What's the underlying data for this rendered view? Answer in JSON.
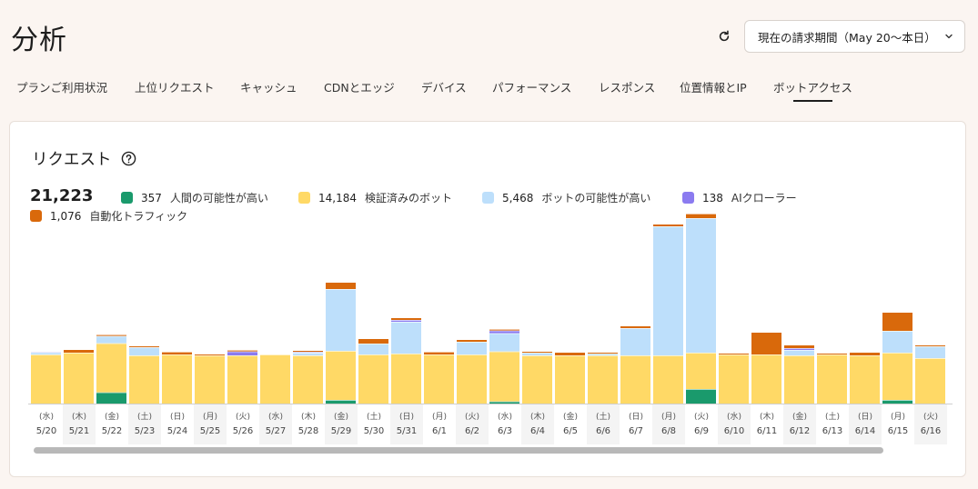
{
  "header": {
    "title": "分析",
    "period_label": "現在の請求期間（May 20〜本日）"
  },
  "tabs": [
    {
      "label": "プランご利用状況"
    },
    {
      "label": "上位リクエスト"
    },
    {
      "label": "キャッシュ"
    },
    {
      "label": "CDNとエッジ"
    },
    {
      "label": "デバイス"
    },
    {
      "label": "パフォーマンス"
    },
    {
      "label": "レスポンス"
    },
    {
      "label": "位置情報とIP"
    },
    {
      "label": "ボットアクセス"
    }
  ],
  "active_tab": "ボットアクセス",
  "card": {
    "title": "リクエスト",
    "total": "21,223"
  },
  "colors": {
    "human": "#1a9a6c",
    "verified": "#ffd966",
    "likely_bot": "#bddffb",
    "ai": "#8b7bf0",
    "automated": "#d9690b"
  },
  "chart_data": {
    "type": "bar",
    "stacked": true,
    "categories": [
      "5/20",
      "5/21",
      "5/22",
      "5/23",
      "5/24",
      "5/25",
      "5/26",
      "5/27",
      "5/28",
      "5/29",
      "5/30",
      "5/31",
      "6/1",
      "6/2",
      "6/3",
      "6/4",
      "6/5",
      "6/6",
      "6/7",
      "6/8",
      "6/9",
      "6/10",
      "6/11",
      "6/12",
      "6/13",
      "6/14",
      "6/15",
      "6/16"
    ],
    "weekdays": [
      "(水)",
      "(木)",
      "(金)",
      "(土)",
      "(日)",
      "(月)",
      "(火)",
      "(水)",
      "(木)",
      "(金)",
      "(土)",
      "(日)",
      "(月)",
      "(火)",
      "(水)",
      "(木)",
      "(金)",
      "(土)",
      "(日)",
      "(月)",
      "(火)",
      "(水)",
      "(木)",
      "(金)",
      "(土)",
      "(日)",
      "(月)",
      "(火)"
    ],
    "series": [
      {
        "name": "人間の可能性が高い",
        "key": "human",
        "total": "357",
        "values": [
          0,
          0,
          62,
          0,
          0,
          0,
          0,
          0,
          0,
          20,
          0,
          0,
          0,
          0,
          12,
          0,
          0,
          0,
          0,
          0,
          80,
          0,
          0,
          0,
          0,
          0,
          20,
          0
        ]
      },
      {
        "name": "検証済みのボット",
        "key": "verified",
        "total": "14,184",
        "values": [
          270,
          280,
          270,
          265,
          270,
          265,
          265,
          270,
          265,
          270,
          270,
          275,
          270,
          270,
          275,
          265,
          265,
          265,
          265,
          265,
          200,
          270,
          270,
          265,
          270,
          265,
          260,
          250
        ]
      },
      {
        "name": "ボットの可能性が高い",
        "key": "likely_bot",
        "total": "5,468",
        "values": [
          12,
          0,
          40,
          45,
          0,
          0,
          0,
          0,
          15,
          340,
          60,
          175,
          0,
          70,
          100,
          15,
          0,
          10,
          150,
          710,
          740,
          0,
          0,
          30,
          0,
          0,
          120,
          65
        ]
      },
      {
        "name": "AIクローラー",
        "key": "ai",
        "total": "138",
        "values": [
          3,
          0,
          0,
          0,
          0,
          0,
          22,
          0,
          5,
          0,
          0,
          10,
          0,
          0,
          15,
          0,
          0,
          0,
          0,
          0,
          0,
          0,
          0,
          10,
          0,
          0,
          0,
          0
        ]
      },
      {
        "name": "自動化トラフィック",
        "key": "automated",
        "total": "1,076",
        "values": [
          0,
          15,
          5,
          5,
          12,
          5,
          5,
          0,
          5,
          35,
          25,
          10,
          12,
          10,
          5,
          5,
          15,
          5,
          10,
          10,
          22,
          5,
          120,
          15,
          5,
          15,
          100,
          5
        ]
      }
    ],
    "ylim": [
      0,
      1200
    ],
    "grid": false,
    "legend": "top-left"
  }
}
